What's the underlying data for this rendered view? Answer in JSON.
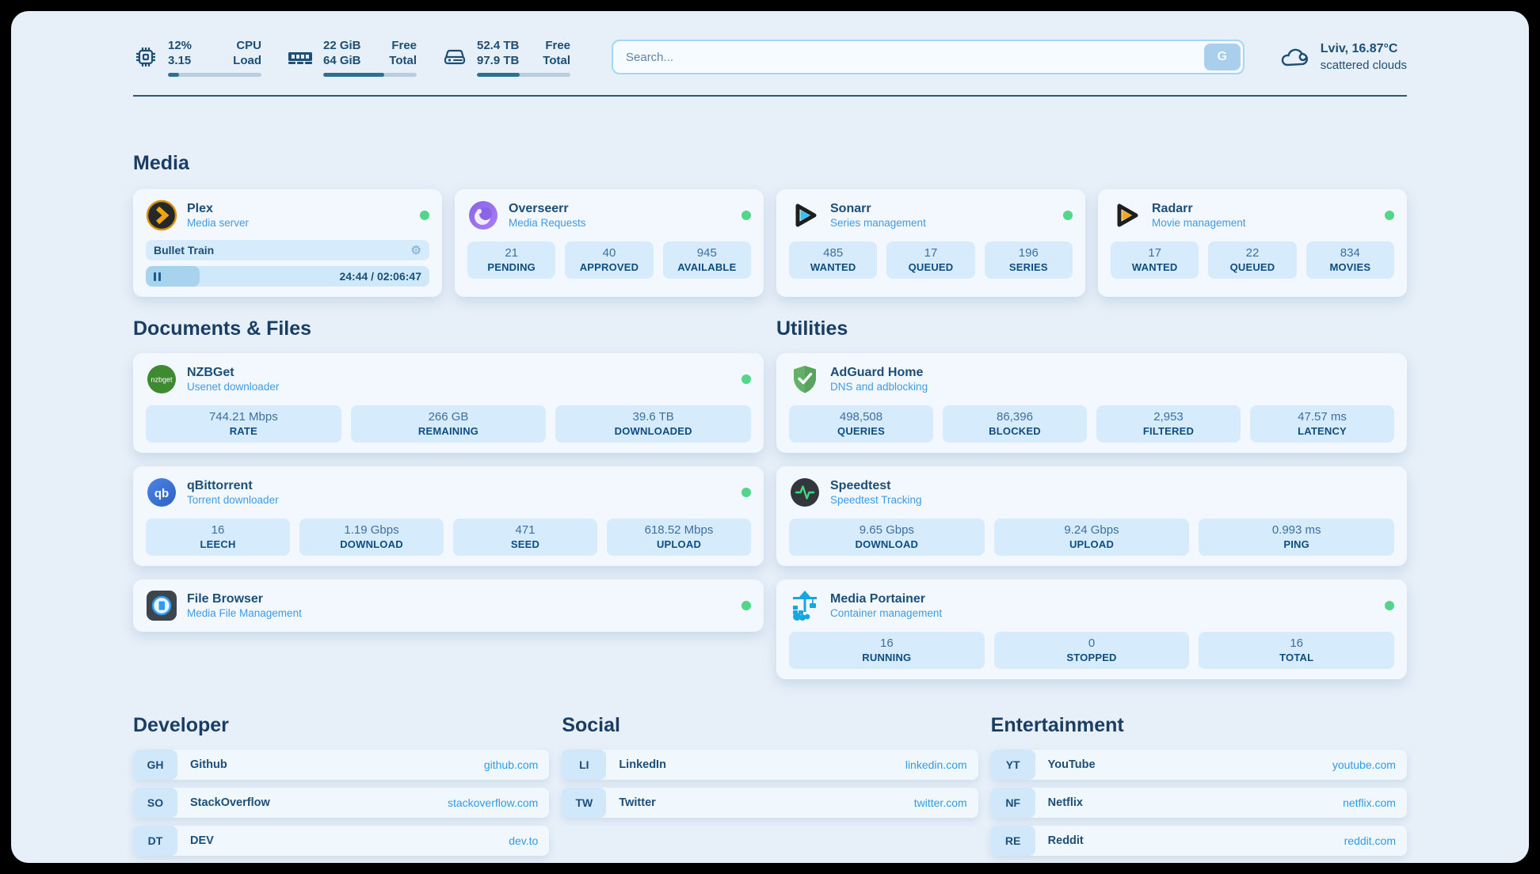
{
  "header": {
    "cpu": {
      "value_top": "12%",
      "value_bottom": "3.15",
      "label_top": "CPU",
      "label_bottom": "Load",
      "progress_pct": 12
    },
    "ram": {
      "value_top": "22 GiB",
      "value_bottom": "64 GiB",
      "label_top": "Free",
      "label_bottom": "Total",
      "progress_pct": 65
    },
    "disk": {
      "value_top": "52.4 TB",
      "value_bottom": "97.9 TB",
      "label_top": "Free",
      "label_bottom": "Total",
      "progress_pct": 46
    },
    "search": {
      "placeholder": "Search...",
      "button_label": "G"
    },
    "weather": {
      "location": "Lviv, 16.87°C",
      "condition": "scattered clouds"
    }
  },
  "sections": {
    "media": "Media",
    "documents": "Documents & Files",
    "utilities": "Utilities",
    "developer": "Developer",
    "social": "Social",
    "entertainment": "Entertainment"
  },
  "apps": {
    "plex": {
      "name": "Plex",
      "description": "Media server",
      "now_playing": {
        "title": "Bullet Train",
        "time": "24:44 / 02:06:47",
        "progress_pct": 19
      }
    },
    "overseerr": {
      "name": "Overseerr",
      "description": "Media Requests",
      "stats": [
        {
          "value": "21",
          "label": "PENDING"
        },
        {
          "value": "40",
          "label": "APPROVED"
        },
        {
          "value": "945",
          "label": "AVAILABLE"
        }
      ]
    },
    "sonarr": {
      "name": "Sonarr",
      "description": "Series management",
      "stats": [
        {
          "value": "485",
          "label": "WANTED"
        },
        {
          "value": "17",
          "label": "QUEUED"
        },
        {
          "value": "196",
          "label": "SERIES"
        }
      ]
    },
    "radarr": {
      "name": "Radarr",
      "description": "Movie management",
      "stats": [
        {
          "value": "17",
          "label": "WANTED"
        },
        {
          "value": "22",
          "label": "QUEUED"
        },
        {
          "value": "834",
          "label": "MOVIES"
        }
      ]
    },
    "nzbget": {
      "name": "NZBGet",
      "description": "Usenet downloader",
      "stats": [
        {
          "value": "744.21 Mbps",
          "label": "RATE"
        },
        {
          "value": "266 GB",
          "label": "REMAINING"
        },
        {
          "value": "39.6 TB",
          "label": "DOWNLOADED"
        }
      ]
    },
    "qbittorrent": {
      "name": "qBittorrent",
      "description": "Torrent downloader",
      "stats": [
        {
          "value": "16",
          "label": "LEECH"
        },
        {
          "value": "1.19 Gbps",
          "label": "DOWNLOAD"
        },
        {
          "value": "471",
          "label": "SEED"
        },
        {
          "value": "618.52 Mbps",
          "label": "UPLOAD"
        }
      ]
    },
    "filebrowser": {
      "name": "File Browser",
      "description": "Media File Management"
    },
    "adguard": {
      "name": "AdGuard Home",
      "description": "DNS and adblocking",
      "stats": [
        {
          "value": "498,508",
          "label": "QUERIES"
        },
        {
          "value": "86,396",
          "label": "BLOCKED"
        },
        {
          "value": "2,953",
          "label": "FILTERED"
        },
        {
          "value": "47.57 ms",
          "label": "LATENCY"
        }
      ]
    },
    "speedtest": {
      "name": "Speedtest",
      "description": "Speedtest Tracking",
      "stats": [
        {
          "value": "9.65 Gbps",
          "label": "DOWNLOAD"
        },
        {
          "value": "9.24 Gbps",
          "label": "UPLOAD"
        },
        {
          "value": "0.993 ms",
          "label": "PING"
        }
      ]
    },
    "portainer": {
      "name": "Media Portainer",
      "description": "Container management",
      "stats": [
        {
          "value": "16",
          "label": "RUNNING"
        },
        {
          "value": "0",
          "label": "STOPPED"
        },
        {
          "value": "16",
          "label": "TOTAL"
        }
      ]
    }
  },
  "links": {
    "developer": [
      {
        "tag": "GH",
        "name": "Github",
        "url": "github.com"
      },
      {
        "tag": "SO",
        "name": "StackOverflow",
        "url": "stackoverflow.com"
      },
      {
        "tag": "DT",
        "name": "DEV",
        "url": "dev.to"
      }
    ],
    "social": [
      {
        "tag": "LI",
        "name": "LinkedIn",
        "url": "linkedin.com"
      },
      {
        "tag": "TW",
        "name": "Twitter",
        "url": "twitter.com"
      }
    ],
    "entertainment": [
      {
        "tag": "YT",
        "name": "YouTube",
        "url": "youtube.com"
      },
      {
        "tag": "NF",
        "name": "Netflix",
        "url": "netflix.com"
      },
      {
        "tag": "RE",
        "name": "Reddit",
        "url": "reddit.com"
      }
    ]
  },
  "colors": {
    "navy": "#1d4e74",
    "accent_blue": "#3f9be5",
    "status_green": "#52d689",
    "link_blue": "#2f9ce6"
  }
}
